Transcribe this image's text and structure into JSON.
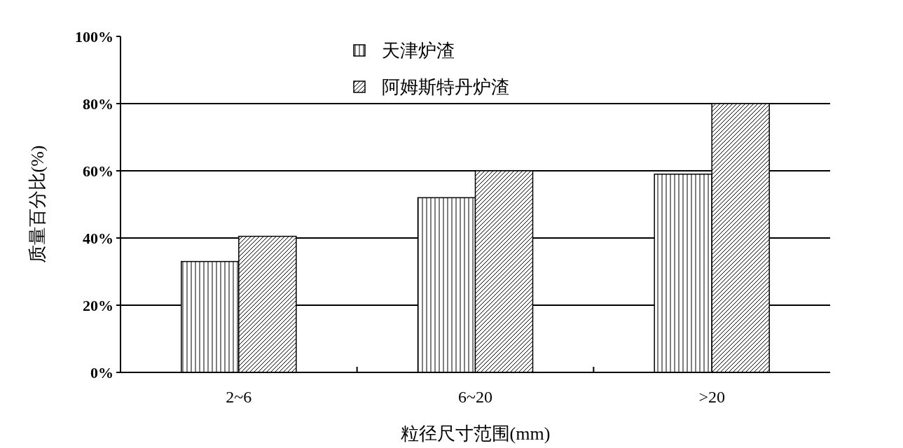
{
  "chart_data": {
    "type": "bar",
    "xlabel": "粒径尺寸范围(mm)",
    "ylabel": "质量百分比(%)",
    "categories": [
      "2~6",
      "6~20",
      ">20"
    ],
    "series": [
      {
        "name": "天津炉渣",
        "color": "#000000",
        "values": [
          33,
          52,
          59
        ]
      },
      {
        "name": "阿姆斯特丹炉渣",
        "color": "#000000",
        "values": [
          40.5,
          60,
          80
        ]
      }
    ],
    "ylim": [
      0,
      100
    ],
    "yticks": [
      {
        "value": 0,
        "label": "0%"
      },
      {
        "value": 20,
        "label": "20%"
      },
      {
        "value": 40,
        "label": "40%"
      },
      {
        "value": 60,
        "label": "60%"
      },
      {
        "value": 80,
        "label": "80%"
      },
      {
        "value": 100,
        "label": "100%"
      }
    ],
    "grid": "y",
    "legend": "top"
  }
}
